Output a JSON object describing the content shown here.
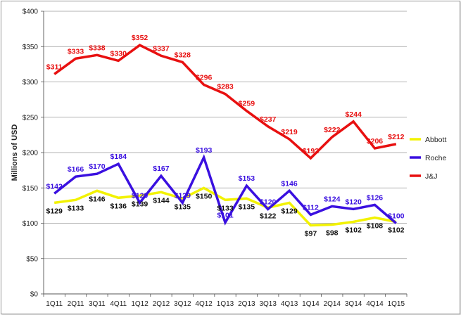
{
  "chart_data": {
    "type": "line",
    "title": "",
    "xlabel": "",
    "ylabel": "Millions of USD",
    "ylim": [
      0,
      400
    ],
    "yticks": [
      0,
      50,
      100,
      150,
      200,
      250,
      300,
      350,
      400
    ],
    "ytick_labels": [
      "$0",
      "$50",
      "$100",
      "$150",
      "$200",
      "$250",
      "$300",
      "$350",
      "$400"
    ],
    "categories": [
      "1Q11",
      "2Q11",
      "3Q11",
      "4Q11",
      "1Q12",
      "2Q12",
      "3Q12",
      "4Q12",
      "1Q13",
      "2Q13",
      "3Q13",
      "4Q13",
      "1Q14",
      "2Q14",
      "3Q14",
      "4Q14",
      "1Q15"
    ],
    "grid": true,
    "legend_position": "right",
    "series": [
      {
        "name": "Abbott",
        "color": "#f2f200",
        "label_color": "#111111",
        "label_side": "below",
        "values": [
          129,
          133,
          146,
          136,
          139,
          144,
          135,
          150,
          133,
          135,
          122,
          129,
          97,
          98,
          102,
          108,
          102
        ],
        "labels": [
          "$129",
          "$133",
          "$146",
          "$136",
          "$139",
          "$144",
          "$135",
          "$150",
          "$133",
          "$135",
          "$122",
          "$129",
          "$97",
          "$98",
          "$102",
          "$108",
          "$102"
        ]
      },
      {
        "name": "Roche",
        "color": "#3a10e0",
        "label_color": "#3a10e0",
        "label_side": "above",
        "values": [
          142,
          166,
          170,
          184,
          129,
          167,
          129,
          193,
          101,
          153,
          120,
          146,
          112,
          124,
          120,
          126,
          100
        ],
        "labels": [
          "$142",
          "$166",
          "$170",
          "$184",
          "$129",
          "$167",
          "$129",
          "$193",
          "$101",
          "$153",
          "$120",
          "$146",
          "$112",
          "$124",
          "$120",
          "$126",
          "$100"
        ]
      },
      {
        "name": "J&J",
        "color": "#e81010",
        "label_color": "#e81010",
        "label_side": "above",
        "values": [
          311,
          333,
          338,
          330,
          352,
          337,
          328,
          296,
          283,
          259,
          237,
          219,
          192,
          222,
          244,
          206,
          212
        ],
        "labels": [
          "$311",
          "$333",
          "$338",
          "$330",
          "$352",
          "$337",
          "$328",
          "$296",
          "$283",
          "$259",
          "$237",
          "$219",
          "$192",
          "$222",
          "$244",
          "$206",
          "$212"
        ]
      }
    ]
  }
}
